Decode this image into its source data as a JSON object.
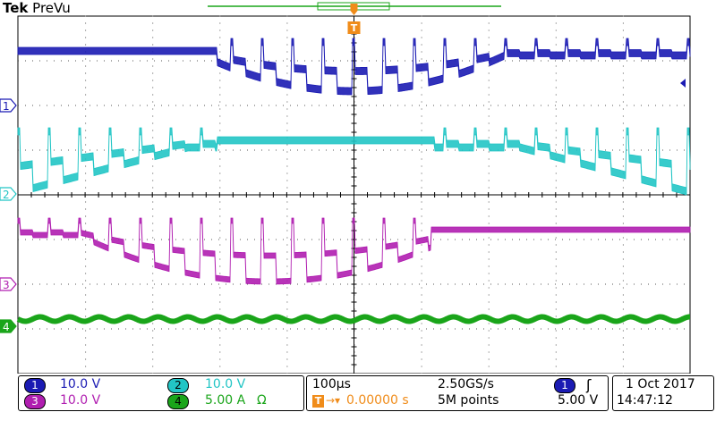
{
  "header": {
    "brand": "Tek",
    "mode": "PreVu"
  },
  "trigger_marker": {
    "label": "T"
  },
  "channels": [
    {
      "id": "1",
      "color": "#1b1bb3",
      "scale": "10.0 V"
    },
    {
      "id": "2",
      "color": "#22c5c5",
      "scale": "10.0 V"
    },
    {
      "id": "3",
      "color": "#b01eb0",
      "scale": "10.0 V"
    },
    {
      "id": "4",
      "color": "#1aa51a",
      "scale": "5.00 A",
      "unit_symbol": "Ω"
    }
  ],
  "timebase": {
    "scale": "100µs",
    "sample_rate": "2.50GS/s",
    "delay_prefix": "T",
    "delay": "0.00000 s",
    "record_length": "5M points"
  },
  "trigger": {
    "source": "1",
    "slope_symbol": "ʃ",
    "level": "5.00 V"
  },
  "datetime": {
    "date": "1 Oct  2017",
    "time": "14:47:12"
  }
}
